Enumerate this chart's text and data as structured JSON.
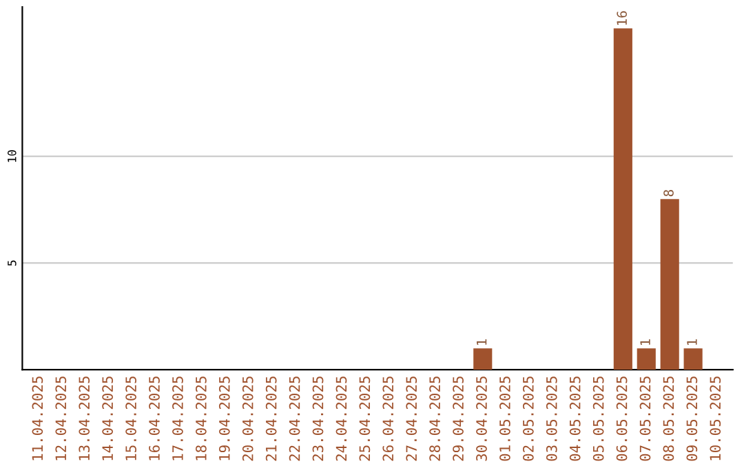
{
  "chart_data": {
    "type": "bar",
    "categories": [
      "11.04.2025",
      "12.04.2025",
      "13.04.2025",
      "14.04.2025",
      "15.04.2025",
      "16.04.2025",
      "17.04.2025",
      "18.04.2025",
      "19.04.2025",
      "20.04.2025",
      "21.04.2025",
      "22.04.2025",
      "23.04.2025",
      "24.04.2025",
      "25.04.2025",
      "26.04.2025",
      "27.04.2025",
      "28.04.2025",
      "29.04.2025",
      "30.04.2025",
      "01.05.2025",
      "02.05.2025",
      "03.05.2025",
      "04.05.2025",
      "05.05.2025",
      "06.05.2025",
      "07.05.2025",
      "08.05.2025",
      "09.05.2025",
      "10.05.2025"
    ],
    "values": [
      0,
      0,
      0,
      0,
      0,
      0,
      0,
      0,
      0,
      0,
      0,
      0,
      0,
      0,
      0,
      0,
      0,
      0,
      0,
      1,
      0,
      0,
      0,
      0,
      0,
      16,
      1,
      8,
      1,
      0
    ],
    "value_labels": [
      null,
      null,
      null,
      null,
      null,
      null,
      null,
      null,
      null,
      null,
      null,
      null,
      null,
      null,
      null,
      null,
      null,
      null,
      null,
      "1",
      null,
      null,
      null,
      null,
      null,
      "16",
      "1",
      "8",
      "1",
      null
    ],
    "color": "#a0522d",
    "ylim": [
      0,
      17
    ],
    "yticks": [
      5,
      10
    ],
    "grid": "y"
  }
}
